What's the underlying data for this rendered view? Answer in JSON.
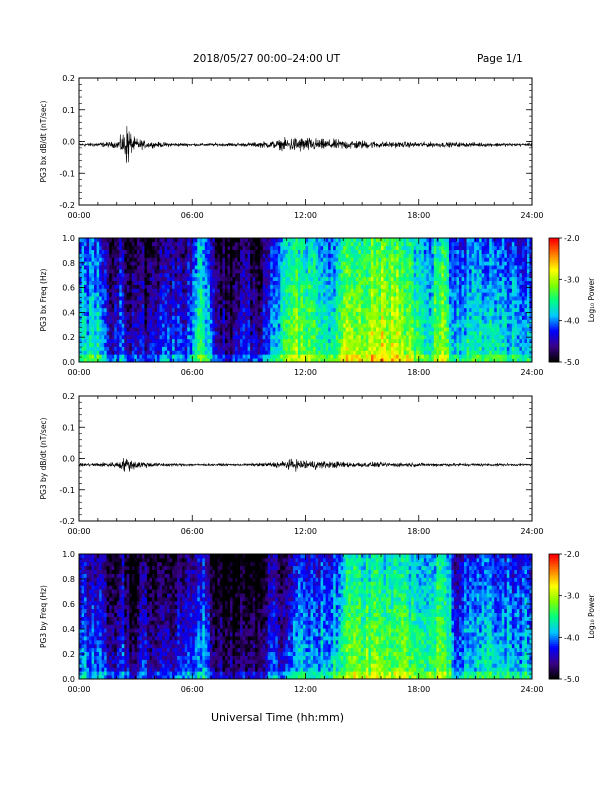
{
  "header": {
    "title": "2018/05/27  00:00–24:00 UT",
    "page": "Page 1/1"
  },
  "footer": {
    "xlabel": "Universal Time (hh:mm)"
  },
  "colors": {
    "trace": "#000000",
    "axes": "#000000",
    "colorbar_stops": [
      "#000000",
      "#3a008a",
      "#0000ff",
      "#00c8ff",
      "#00ff80",
      "#80ff00",
      "#ffff00",
      "#ff8000",
      "#ff0000"
    ]
  },
  "chart_data": [
    {
      "type": "line",
      "name": "bx-waveform",
      "ylabel": "PG3 bx dB/dt (nT/sec)",
      "xlim": [
        0,
        24
      ],
      "ylim": [
        -0.2,
        0.2
      ],
      "x_ticks": [
        "00:00",
        "06:00",
        "12:00",
        "18:00",
        "24:00"
      ],
      "y_ticks": [
        "0.2",
        "0.1",
        "0.0",
        "-0.1",
        "-0.2"
      ],
      "baseline": -0.01,
      "envelope": [
        {
          "x": 0.0,
          "y": 0.006
        },
        {
          "x": 1.0,
          "y": 0.008
        },
        {
          "x": 2.0,
          "y": 0.012
        },
        {
          "x": 2.4,
          "y": 0.05
        },
        {
          "x": 2.6,
          "y": 0.09
        },
        {
          "x": 2.8,
          "y": 0.03
        },
        {
          "x": 3.5,
          "y": 0.014
        },
        {
          "x": 4.0,
          "y": 0.01
        },
        {
          "x": 6.0,
          "y": 0.005
        },
        {
          "x": 9.0,
          "y": 0.007
        },
        {
          "x": 10.5,
          "y": 0.016
        },
        {
          "x": 11.0,
          "y": 0.025
        },
        {
          "x": 11.5,
          "y": 0.03
        },
        {
          "x": 12.0,
          "y": 0.028
        },
        {
          "x": 13.0,
          "y": 0.02
        },
        {
          "x": 14.5,
          "y": 0.018
        },
        {
          "x": 16.0,
          "y": 0.012
        },
        {
          "x": 18.0,
          "y": 0.01
        },
        {
          "x": 20.0,
          "y": 0.009
        },
        {
          "x": 22.0,
          "y": 0.007
        },
        {
          "x": 24.0,
          "y": 0.005
        }
      ]
    },
    {
      "type": "heatmap",
      "name": "bx-spectrogram",
      "ylabel": "PG3 bx Freq (Hz)",
      "xlim": [
        0,
        24
      ],
      "ylim": [
        0,
        1.0
      ],
      "x_ticks": [
        "00:00",
        "06:00",
        "12:00",
        "18:00",
        "24:00"
      ],
      "y_ticks": [
        "1.0",
        "0.8",
        "0.6",
        "0.4",
        "0.2",
        "0.0"
      ],
      "colorbar": {
        "label": "Log₁₀ Power",
        "range": [
          -5.0,
          -2.0
        ],
        "ticks": [
          "-2.0",
          "-3.0",
          "-4.0",
          "-5.0"
        ]
      },
      "activity": [
        {
          "x": 0.0,
          "level": 0.45
        },
        {
          "x": 1.2,
          "level": 0.45
        },
        {
          "x": 1.7,
          "level": 0.2
        },
        {
          "x": 2.3,
          "level": 0.35
        },
        {
          "x": 2.7,
          "level": 0.15
        },
        {
          "x": 3.2,
          "level": 0.3
        },
        {
          "x": 3.6,
          "level": 0.15
        },
        {
          "x": 4.2,
          "level": 0.25
        },
        {
          "x": 5.0,
          "level": 0.3
        },
        {
          "x": 5.6,
          "level": 0.25
        },
        {
          "x": 6.5,
          "level": 0.55
        },
        {
          "x": 7.4,
          "level": 0.2
        },
        {
          "x": 8.0,
          "level": 0.15
        },
        {
          "x": 8.8,
          "level": 0.3
        },
        {
          "x": 9.4,
          "level": 0.15
        },
        {
          "x": 10.0,
          "level": 0.35
        },
        {
          "x": 10.6,
          "level": 0.45
        },
        {
          "x": 11.2,
          "level": 0.65
        },
        {
          "x": 12.5,
          "level": 0.55
        },
        {
          "x": 13.5,
          "level": 0.45
        },
        {
          "x": 14.2,
          "level": 0.7
        },
        {
          "x": 15.0,
          "level": 0.65
        },
        {
          "x": 15.6,
          "level": 0.75
        },
        {
          "x": 17.0,
          "level": 0.7
        },
        {
          "x": 18.5,
          "level": 0.5
        },
        {
          "x": 19.3,
          "level": 0.7
        },
        {
          "x": 19.8,
          "level": 0.4
        },
        {
          "x": 21.0,
          "level": 0.5
        },
        {
          "x": 22.5,
          "level": 0.45
        },
        {
          "x": 24.0,
          "level": 0.4
        }
      ]
    },
    {
      "type": "line",
      "name": "by-waveform",
      "ylabel": "PG3 by dB/dt (nT/sec)",
      "xlim": [
        0,
        24
      ],
      "ylim": [
        -0.2,
        0.2
      ],
      "x_ticks": [
        "00:00",
        "06:00",
        "12:00",
        "18:00",
        "24:00"
      ],
      "y_ticks": [
        "0.2",
        "0.1",
        "0.0",
        "-0.1",
        "-0.2"
      ],
      "baseline": -0.02,
      "envelope": [
        {
          "x": 0.0,
          "y": 0.005
        },
        {
          "x": 1.0,
          "y": 0.008
        },
        {
          "x": 2.0,
          "y": 0.01
        },
        {
          "x": 2.5,
          "y": 0.03
        },
        {
          "x": 2.8,
          "y": 0.02
        },
        {
          "x": 3.5,
          "y": 0.012
        },
        {
          "x": 4.0,
          "y": 0.008
        },
        {
          "x": 6.0,
          "y": 0.004
        },
        {
          "x": 9.0,
          "y": 0.004
        },
        {
          "x": 10.5,
          "y": 0.012
        },
        {
          "x": 11.3,
          "y": 0.02
        },
        {
          "x": 12.0,
          "y": 0.02
        },
        {
          "x": 13.0,
          "y": 0.014
        },
        {
          "x": 15.0,
          "y": 0.01
        },
        {
          "x": 17.0,
          "y": 0.008
        },
        {
          "x": 20.0,
          "y": 0.006
        },
        {
          "x": 24.0,
          "y": 0.004
        }
      ]
    },
    {
      "type": "heatmap",
      "name": "by-spectrogram",
      "ylabel": "PG3 by Freq (Hz)",
      "xlim": [
        0,
        24
      ],
      "ylim": [
        0,
        1.0
      ],
      "x_ticks": [
        "00:00",
        "06:00",
        "12:00",
        "18:00",
        "24:00"
      ],
      "y_ticks": [
        "1.0",
        "0.8",
        "0.6",
        "0.4",
        "0.2",
        "0.0"
      ],
      "colorbar": {
        "label": "Log₁₀ Power",
        "range": [
          -5.0,
          -2.0
        ],
        "ticks": [
          "-2.0",
          "-3.0",
          "-4.0",
          "-5.0"
        ]
      },
      "activity": [
        {
          "x": 0.0,
          "level": 0.35
        },
        {
          "x": 1.2,
          "level": 0.35
        },
        {
          "x": 1.7,
          "level": 0.15
        },
        {
          "x": 2.3,
          "level": 0.3
        },
        {
          "x": 2.8,
          "level": 0.12
        },
        {
          "x": 3.3,
          "level": 0.25
        },
        {
          "x": 4.5,
          "level": 0.2
        },
        {
          "x": 5.5,
          "level": 0.25
        },
        {
          "x": 6.5,
          "level": 0.4
        },
        {
          "x": 7.3,
          "level": 0.15
        },
        {
          "x": 8.0,
          "level": 0.1
        },
        {
          "x": 8.8,
          "level": 0.15
        },
        {
          "x": 9.6,
          "level": 0.12
        },
        {
          "x": 10.2,
          "level": 0.3
        },
        {
          "x": 10.8,
          "level": 0.2
        },
        {
          "x": 11.5,
          "level": 0.45
        },
        {
          "x": 12.5,
          "level": 0.35
        },
        {
          "x": 13.5,
          "level": 0.45
        },
        {
          "x": 14.5,
          "level": 0.65
        },
        {
          "x": 15.5,
          "level": 0.6
        },
        {
          "x": 17.0,
          "level": 0.65
        },
        {
          "x": 18.5,
          "level": 0.5
        },
        {
          "x": 19.3,
          "level": 0.65
        },
        {
          "x": 20.0,
          "level": 0.35
        },
        {
          "x": 21.5,
          "level": 0.45
        },
        {
          "x": 24.0,
          "level": 0.4
        }
      ]
    }
  ]
}
